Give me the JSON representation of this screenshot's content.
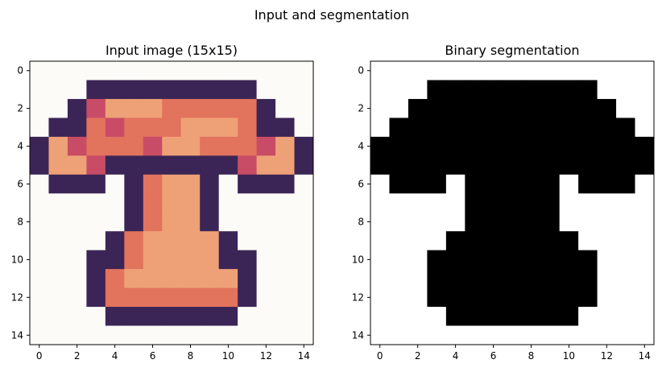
{
  "suptitle": "Input and segmentation",
  "colors": {
    "background": "#fcfbf7",
    "dark_outline": "#3b2556",
    "peach": "#eea176",
    "orange": "#e2735d",
    "rose": "#c94c67",
    "segment_on": "#000000",
    "segment_off": "#ffffff"
  },
  "chart_data": [
    {
      "type": "heatmap",
      "title": "Input image (15x15)",
      "xlabel": "",
      "ylabel": "",
      "xlim": [
        -0.5,
        14.5
      ],
      "ylim": [
        14.5,
        -0.5
      ],
      "xticks": [
        0,
        2,
        4,
        6,
        8,
        10,
        12,
        14
      ],
      "yticks": [
        0,
        2,
        4,
        6,
        8,
        10,
        12,
        14
      ],
      "grid": false,
      "palette": [
        "#fcfbf7",
        "#3b2556",
        "#eea176",
        "#e2735d",
        "#c94c67"
      ],
      "values": [
        [
          0,
          0,
          0,
          0,
          0,
          0,
          0,
          0,
          0,
          0,
          0,
          0,
          0,
          0,
          0
        ],
        [
          0,
          0,
          0,
          1,
          1,
          1,
          1,
          1,
          1,
          1,
          1,
          1,
          0,
          0,
          0
        ],
        [
          0,
          0,
          1,
          4,
          2,
          2,
          2,
          3,
          3,
          3,
          3,
          3,
          1,
          0,
          0
        ],
        [
          0,
          1,
          1,
          3,
          4,
          3,
          3,
          3,
          2,
          2,
          2,
          3,
          1,
          1,
          0
        ],
        [
          1,
          2,
          4,
          3,
          3,
          3,
          4,
          2,
          2,
          3,
          3,
          3,
          4,
          2,
          1
        ],
        [
          1,
          2,
          2,
          4,
          1,
          1,
          1,
          1,
          1,
          1,
          1,
          4,
          2,
          2,
          1
        ],
        [
          0,
          1,
          1,
          1,
          0,
          1,
          3,
          2,
          2,
          1,
          0,
          1,
          1,
          1,
          0
        ],
        [
          0,
          0,
          0,
          0,
          0,
          1,
          3,
          2,
          2,
          1,
          0,
          0,
          0,
          0,
          0
        ],
        [
          0,
          0,
          0,
          0,
          0,
          1,
          3,
          2,
          2,
          1,
          0,
          0,
          0,
          0,
          0
        ],
        [
          0,
          0,
          0,
          0,
          1,
          3,
          2,
          2,
          2,
          2,
          1,
          0,
          0,
          0,
          0
        ],
        [
          0,
          0,
          0,
          1,
          1,
          3,
          2,
          2,
          2,
          2,
          1,
          1,
          0,
          0,
          0
        ],
        [
          0,
          0,
          0,
          1,
          3,
          2,
          2,
          2,
          2,
          2,
          2,
          1,
          0,
          0,
          0
        ],
        [
          0,
          0,
          0,
          1,
          3,
          3,
          3,
          3,
          3,
          3,
          3,
          1,
          0,
          0,
          0
        ],
        [
          0,
          0,
          0,
          0,
          1,
          1,
          1,
          1,
          1,
          1,
          1,
          0,
          0,
          0,
          0
        ],
        [
          0,
          0,
          0,
          0,
          0,
          0,
          0,
          0,
          0,
          0,
          0,
          0,
          0,
          0,
          0
        ]
      ]
    },
    {
      "type": "heatmap",
      "title": "Binary segmentation",
      "xlabel": "",
      "ylabel": "",
      "xlim": [
        -0.5,
        14.5
      ],
      "ylim": [
        14.5,
        -0.5
      ],
      "xticks": [
        0,
        2,
        4,
        6,
        8,
        10,
        12,
        14
      ],
      "yticks": [
        0,
        2,
        4,
        6,
        8,
        10,
        12,
        14
      ],
      "grid": false,
      "palette": [
        "#ffffff",
        "#000000"
      ],
      "values": [
        [
          0,
          0,
          0,
          0,
          0,
          0,
          0,
          0,
          0,
          0,
          0,
          0,
          0,
          0,
          0
        ],
        [
          0,
          0,
          0,
          1,
          1,
          1,
          1,
          1,
          1,
          1,
          1,
          1,
          0,
          0,
          0
        ],
        [
          0,
          0,
          1,
          1,
          1,
          1,
          1,
          1,
          1,
          1,
          1,
          1,
          1,
          0,
          0
        ],
        [
          0,
          1,
          1,
          1,
          1,
          1,
          1,
          1,
          1,
          1,
          1,
          1,
          1,
          1,
          0
        ],
        [
          1,
          1,
          1,
          1,
          1,
          1,
          1,
          1,
          1,
          1,
          1,
          1,
          1,
          1,
          1
        ],
        [
          1,
          1,
          1,
          1,
          1,
          1,
          1,
          1,
          1,
          1,
          1,
          1,
          1,
          1,
          1
        ],
        [
          0,
          1,
          1,
          1,
          0,
          1,
          1,
          1,
          1,
          1,
          0,
          1,
          1,
          1,
          0
        ],
        [
          0,
          0,
          0,
          0,
          0,
          1,
          1,
          1,
          1,
          1,
          0,
          0,
          0,
          0,
          0
        ],
        [
          0,
          0,
          0,
          0,
          0,
          1,
          1,
          1,
          1,
          1,
          0,
          0,
          0,
          0,
          0
        ],
        [
          0,
          0,
          0,
          0,
          1,
          1,
          1,
          1,
          1,
          1,
          1,
          0,
          0,
          0,
          0
        ],
        [
          0,
          0,
          0,
          1,
          1,
          1,
          1,
          1,
          1,
          1,
          1,
          1,
          0,
          0,
          0
        ],
        [
          0,
          0,
          0,
          1,
          1,
          1,
          1,
          1,
          1,
          1,
          1,
          1,
          0,
          0,
          0
        ],
        [
          0,
          0,
          0,
          1,
          1,
          1,
          1,
          1,
          1,
          1,
          1,
          1,
          0,
          0,
          0
        ],
        [
          0,
          0,
          0,
          0,
          1,
          1,
          1,
          1,
          1,
          1,
          1,
          0,
          0,
          0,
          0
        ],
        [
          0,
          0,
          0,
          0,
          0,
          0,
          0,
          0,
          0,
          0,
          0,
          0,
          0,
          0,
          0
        ]
      ]
    }
  ]
}
